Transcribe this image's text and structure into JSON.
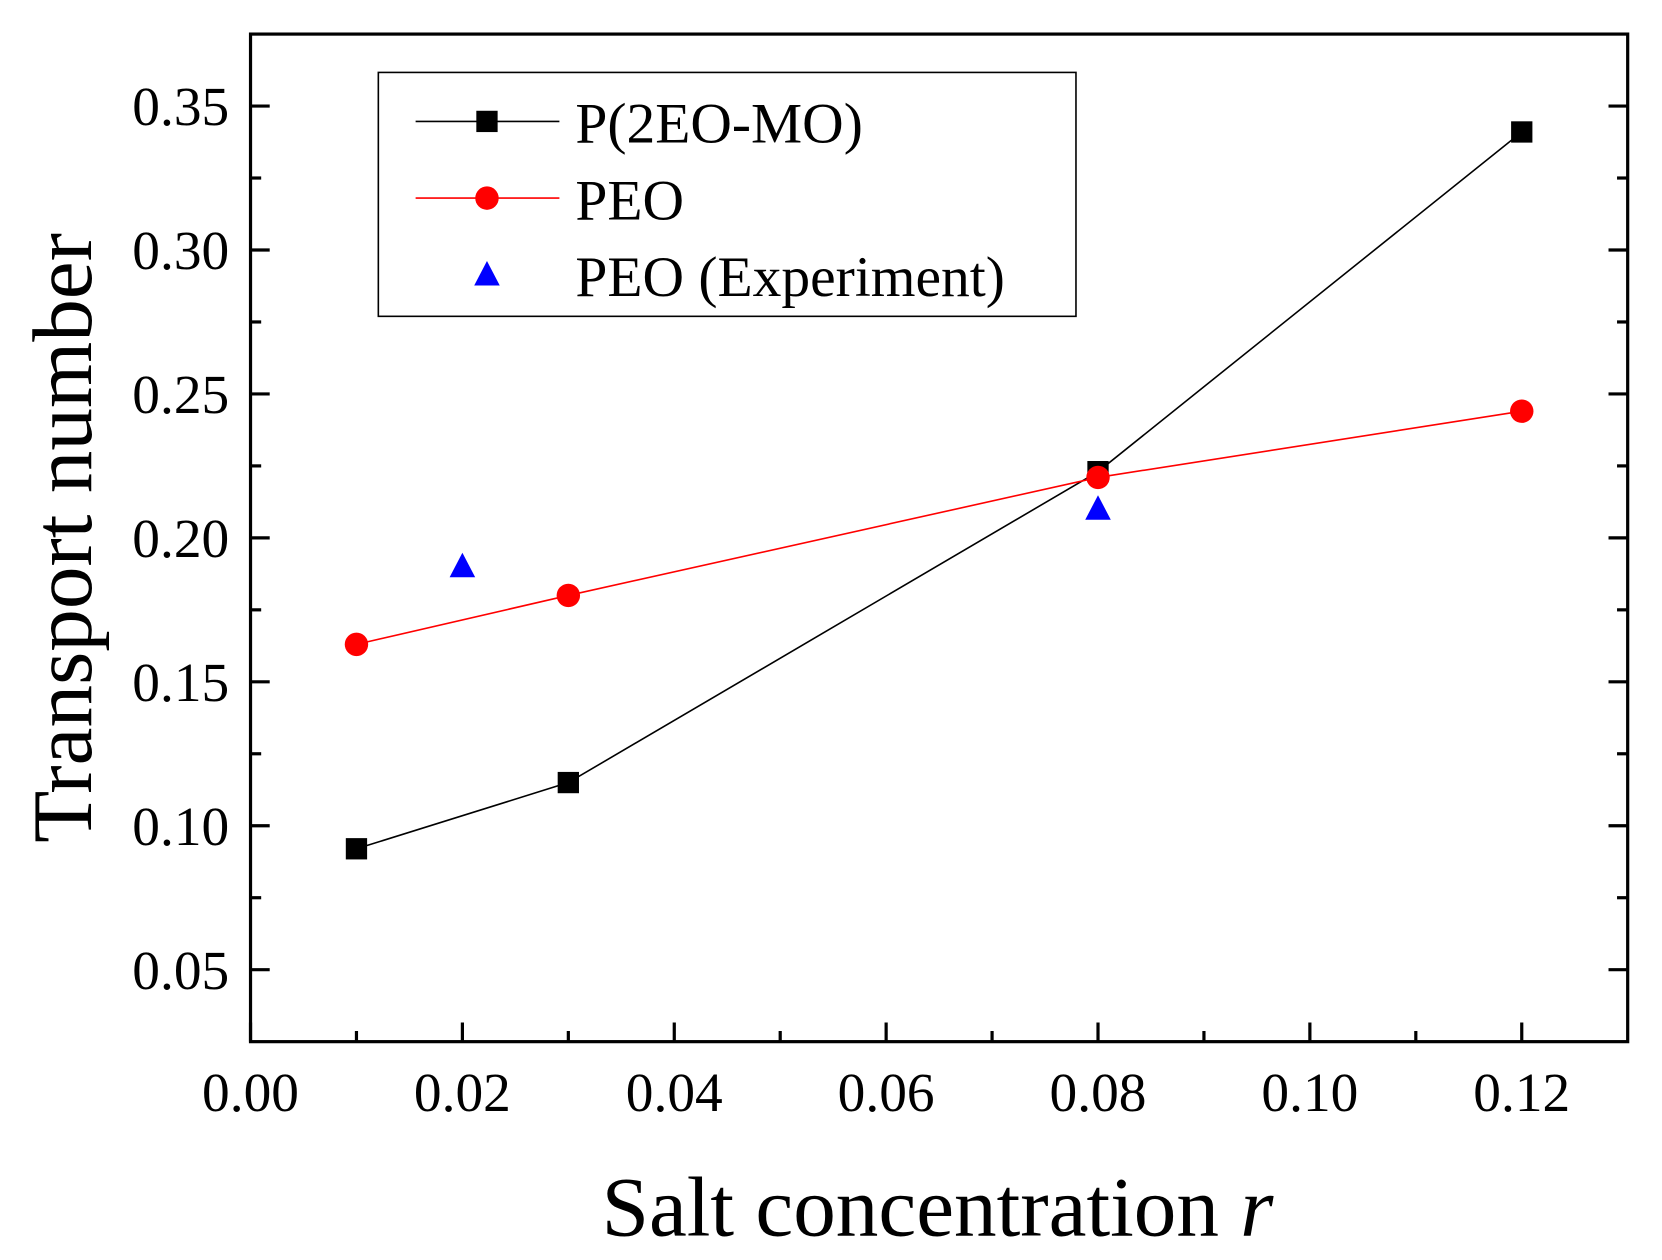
{
  "chart_data": {
    "type": "line",
    "title": "",
    "xlabel": "Salt concentration",
    "xlabel_var": "r",
    "ylabel": "Transport number",
    "xlim": [
      0.0,
      0.13
    ],
    "ylim": [
      0.025,
      0.375
    ],
    "xticks": [
      "0.00",
      "0.02",
      "0.04",
      "0.06",
      "0.08",
      "0.10",
      "0.12"
    ],
    "yticks": [
      "0.05",
      "0.10",
      "0.15",
      "0.20",
      "0.25",
      "0.30",
      "0.35"
    ],
    "grid": false,
    "legend_position": "top-left",
    "series": [
      {
        "name": "P(2EO-MO)",
        "color": "#000000",
        "marker": "square",
        "line": true,
        "x": [
          0.01,
          0.03,
          0.08,
          0.12
        ],
        "y": [
          0.092,
          0.115,
          0.223,
          0.341
        ]
      },
      {
        "name": "PEO",
        "color": "#ff0000",
        "marker": "circle",
        "line": true,
        "x": [
          0.01,
          0.03,
          0.08,
          0.12
        ],
        "y": [
          0.163,
          0.18,
          0.221,
          0.244
        ]
      },
      {
        "name": "PEO (Experiment)",
        "color": "#0000ff",
        "marker": "triangle",
        "line": false,
        "x": [
          0.02,
          0.08
        ],
        "y": [
          0.19,
          0.21
        ]
      }
    ]
  }
}
